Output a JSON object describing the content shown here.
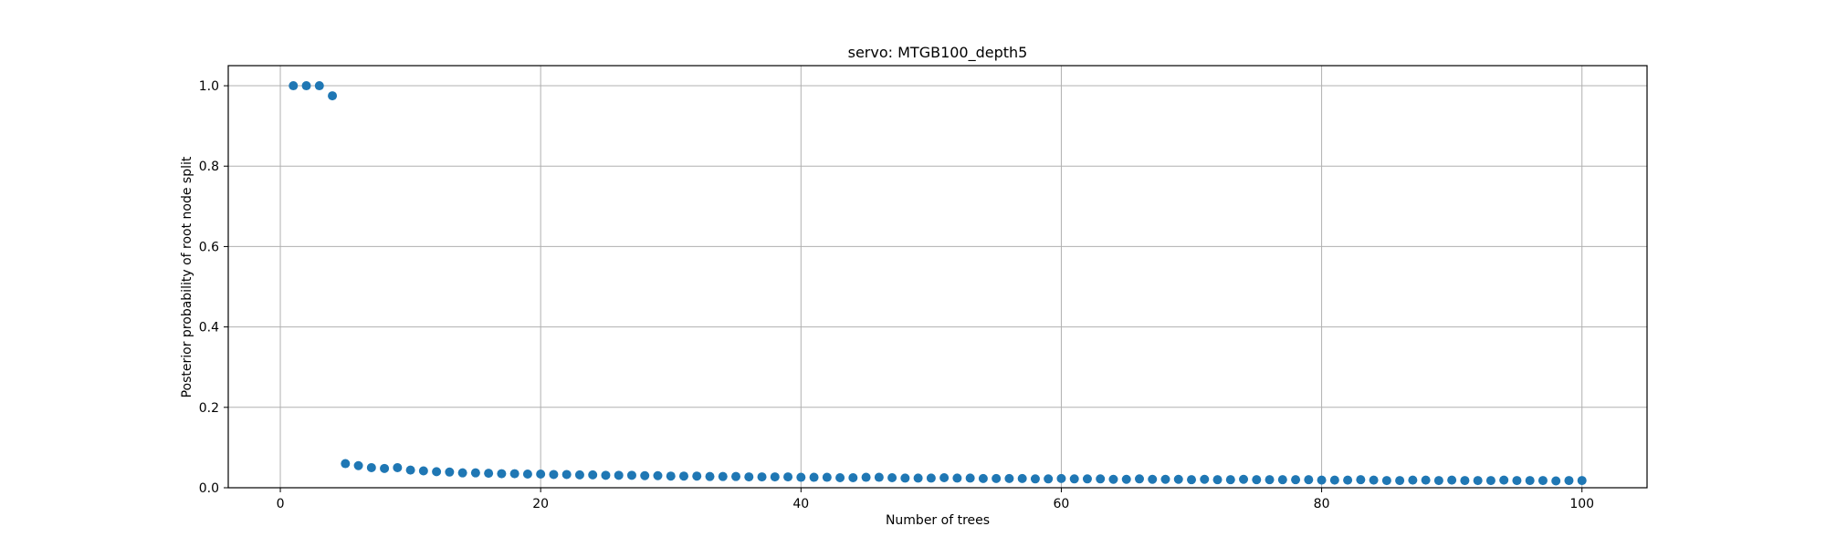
{
  "chart_data": {
    "type": "scatter",
    "title": "servo: MTGB100_depth5",
    "xlabel": "Number of trees",
    "ylabel": "Posterior probability of root node split",
    "xlim": [
      -4,
      105
    ],
    "ylim": [
      0,
      1.05
    ],
    "xticks": [
      0,
      20,
      40,
      60,
      80,
      100
    ],
    "yticks": [
      0.0,
      0.2,
      0.4,
      0.6,
      0.8,
      1.0
    ],
    "grid": true,
    "marker_color": "#1f77b4",
    "series": [
      {
        "name": "posterior",
        "x": [
          1,
          2,
          3,
          4,
          5,
          6,
          7,
          8,
          9,
          10,
          11,
          12,
          13,
          14,
          15,
          16,
          17,
          18,
          19,
          20,
          21,
          22,
          23,
          24,
          25,
          26,
          27,
          28,
          29,
          30,
          31,
          32,
          33,
          34,
          35,
          36,
          37,
          38,
          39,
          40,
          41,
          42,
          43,
          44,
          45,
          46,
          47,
          48,
          49,
          50,
          51,
          52,
          53,
          54,
          55,
          56,
          57,
          58,
          59,
          60,
          61,
          62,
          63,
          64,
          65,
          66,
          67,
          68,
          69,
          70,
          71,
          72,
          73,
          74,
          75,
          76,
          77,
          78,
          79,
          80,
          81,
          82,
          83,
          84,
          85,
          86,
          87,
          88,
          89,
          90,
          91,
          92,
          93,
          94,
          95,
          96,
          97,
          98,
          99,
          100
        ],
        "y": [
          1.0,
          1.0,
          1.0,
          0.975,
          0.06,
          0.055,
          0.05,
          0.048,
          0.05,
          0.044,
          0.042,
          0.04,
          0.039,
          0.037,
          0.037,
          0.036,
          0.035,
          0.035,
          0.034,
          0.034,
          0.033,
          0.033,
          0.032,
          0.032,
          0.031,
          0.031,
          0.031,
          0.03,
          0.03,
          0.029,
          0.029,
          0.029,
          0.028,
          0.028,
          0.028,
          0.027,
          0.027,
          0.027,
          0.027,
          0.026,
          0.026,
          0.026,
          0.025,
          0.025,
          0.026,
          0.026,
          0.025,
          0.024,
          0.024,
          0.024,
          0.025,
          0.024,
          0.024,
          0.023,
          0.023,
          0.023,
          0.023,
          0.022,
          0.022,
          0.023,
          0.022,
          0.022,
          0.022,
          0.021,
          0.021,
          0.022,
          0.021,
          0.021,
          0.021,
          0.02,
          0.021,
          0.02,
          0.02,
          0.021,
          0.02,
          0.02,
          0.02,
          0.02,
          0.02,
          0.019,
          0.019,
          0.019,
          0.02,
          0.019,
          0.018,
          0.018,
          0.019,
          0.019,
          0.018,
          0.019,
          0.018,
          0.018,
          0.018,
          0.019,
          0.018,
          0.018,
          0.018,
          0.017,
          0.018,
          0.018
        ]
      }
    ]
  }
}
